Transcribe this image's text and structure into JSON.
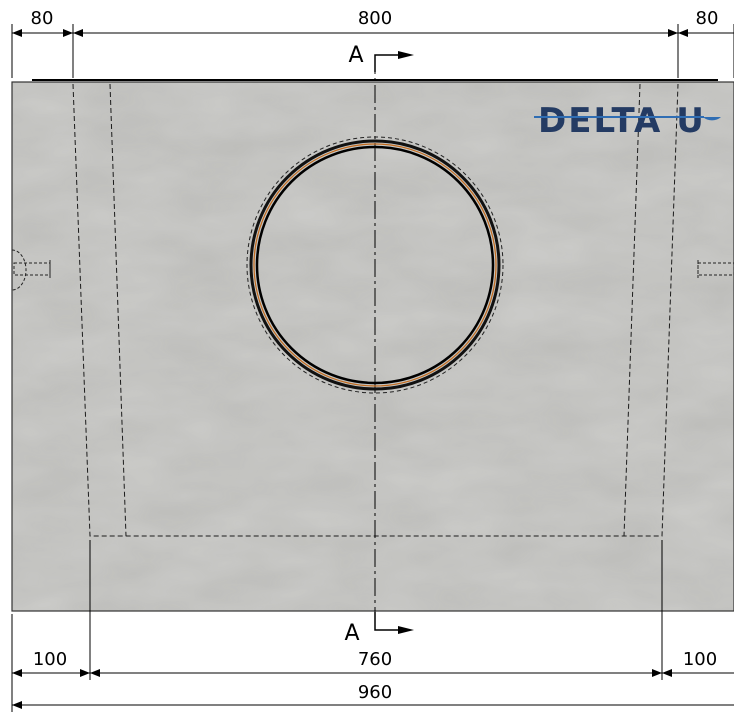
{
  "dimensions": {
    "top_left": "80",
    "top_center": "800",
    "top_right": "80",
    "bottom_left": "100",
    "bottom_center": "760",
    "bottom_right": "100",
    "bottom_total": "960"
  },
  "section_marks": {
    "top": "A",
    "bottom": "A"
  },
  "logo": {
    "text": "DELTA U"
  },
  "colors": {
    "concrete": "#b9b9b6",
    "line": "#000000",
    "logo_blue": "#243b63",
    "logo_accent": "#2f6db3",
    "gasket_orange": "#c36a1c"
  }
}
